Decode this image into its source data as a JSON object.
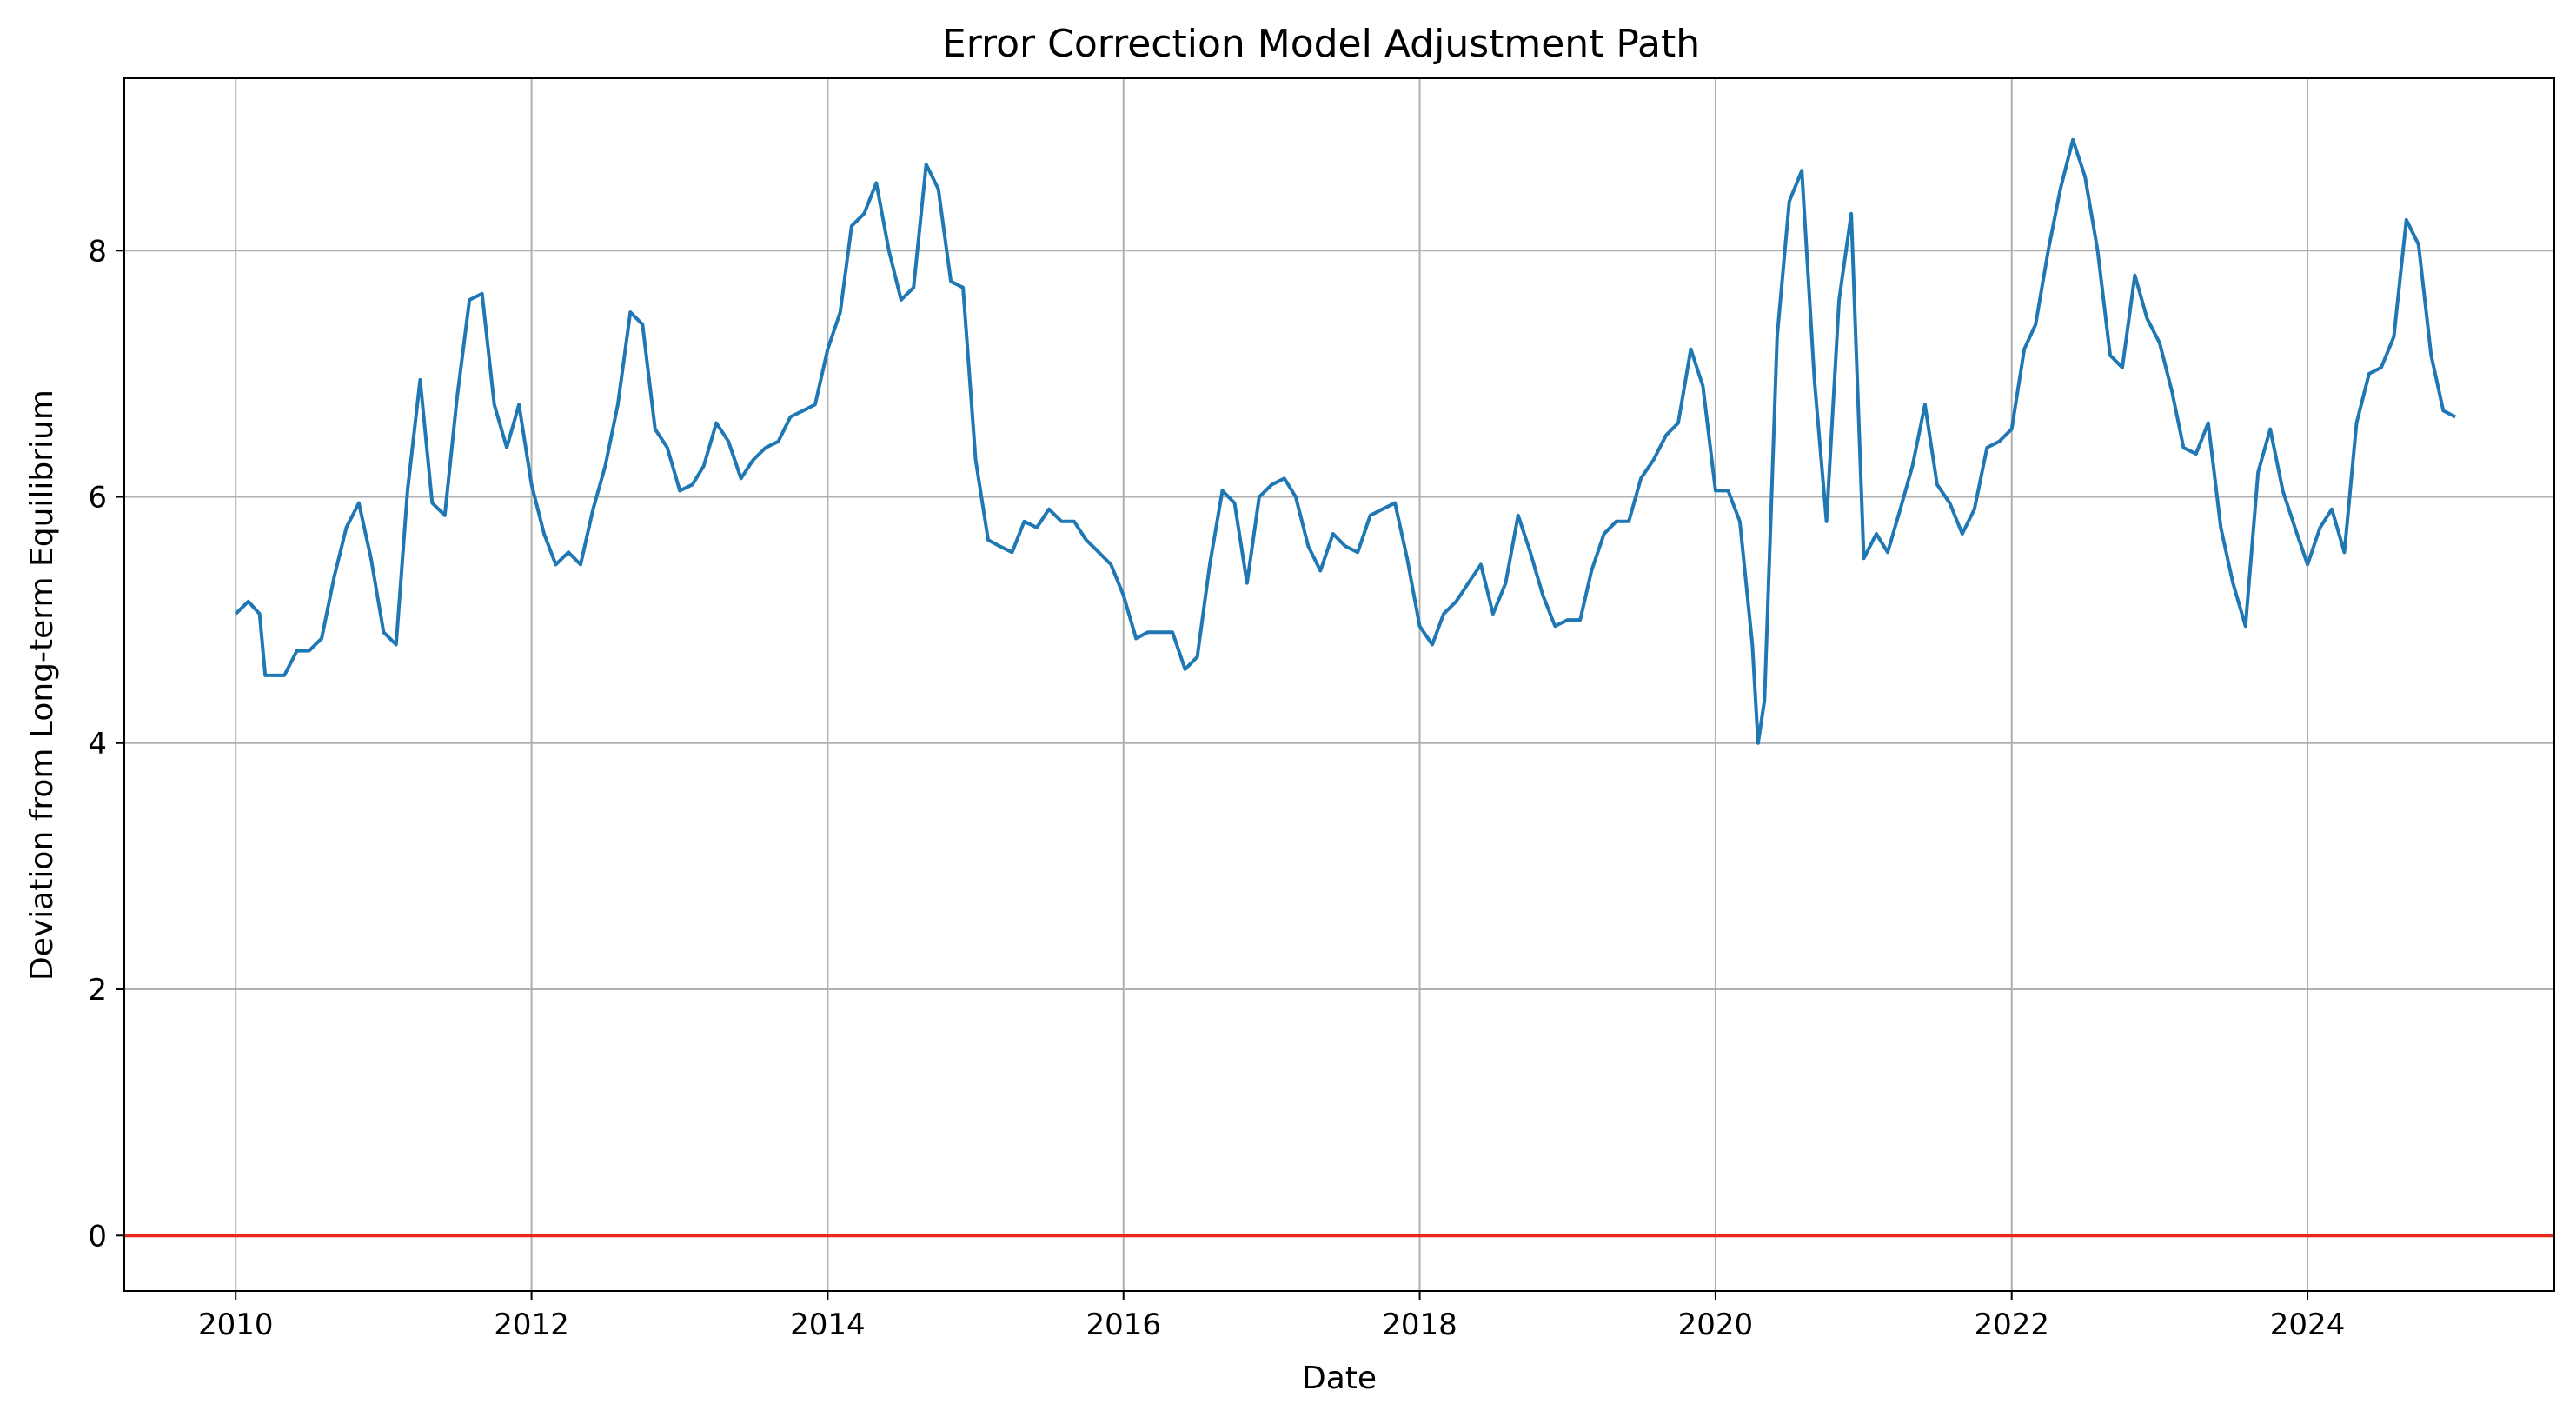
{
  "chart_data": {
    "type": "line",
    "title": "Error Correction Model Adjustment Path",
    "xlabel": "Date",
    "ylabel": "Deviation from Long-term Equilibrium",
    "x_ticks": [
      "2010",
      "2012",
      "2014",
      "2016",
      "2018",
      "2020",
      "2022",
      "2024"
    ],
    "y_ticks": [
      "0",
      "2",
      "4",
      "6",
      "8"
    ],
    "xlim": [
      "2009-04-01",
      "2025-09-01"
    ],
    "ylim": [
      -0.45,
      9.4
    ],
    "grid": true,
    "reference_line": {
      "y": 0,
      "color": "#e8281f"
    },
    "series": [
      {
        "color": "#1f77b4",
        "points": [
          [
            "2010-01-01",
            5.05
          ],
          [
            "2010-02-01",
            5.15
          ],
          [
            "2010-03-01",
            5.05
          ],
          [
            "2010-03-15",
            4.55
          ],
          [
            "2010-05-01",
            4.55
          ],
          [
            "2010-06-01",
            4.75
          ],
          [
            "2010-07-01",
            4.75
          ],
          [
            "2010-08-01",
            4.85
          ],
          [
            "2010-09-01",
            5.35
          ],
          [
            "2010-10-01",
            5.75
          ],
          [
            "2010-11-01",
            5.95
          ],
          [
            "2010-12-01",
            5.5
          ],
          [
            "2011-01-01",
            4.9
          ],
          [
            "2011-02-01",
            4.8
          ],
          [
            "2011-03-01",
            6.05
          ],
          [
            "2011-04-01",
            6.95
          ],
          [
            "2011-05-01",
            5.95
          ],
          [
            "2011-06-01",
            5.85
          ],
          [
            "2011-07-01",
            6.8
          ],
          [
            "2011-08-01",
            7.6
          ],
          [
            "2011-09-01",
            7.65
          ],
          [
            "2011-10-01",
            6.75
          ],
          [
            "2011-11-01",
            6.4
          ],
          [
            "2011-12-01",
            6.75
          ],
          [
            "2012-01-01",
            6.1
          ],
          [
            "2012-02-01",
            5.7
          ],
          [
            "2012-03-01",
            5.45
          ],
          [
            "2012-04-01",
            5.55
          ],
          [
            "2012-05-01",
            5.45
          ],
          [
            "2012-06-01",
            5.9
          ],
          [
            "2012-07-01",
            6.25
          ],
          [
            "2012-08-01",
            6.75
          ],
          [
            "2012-09-01",
            7.5
          ],
          [
            "2012-10-01",
            7.4
          ],
          [
            "2012-11-01",
            6.55
          ],
          [
            "2012-12-01",
            6.4
          ],
          [
            "2013-01-01",
            6.05
          ],
          [
            "2013-02-01",
            6.1
          ],
          [
            "2013-03-01",
            6.25
          ],
          [
            "2013-04-01",
            6.6
          ],
          [
            "2013-05-01",
            6.45
          ],
          [
            "2013-06-01",
            6.15
          ],
          [
            "2013-07-01",
            6.3
          ],
          [
            "2013-08-01",
            6.4
          ],
          [
            "2013-09-01",
            6.45
          ],
          [
            "2013-10-01",
            6.65
          ],
          [
            "2013-11-01",
            6.7
          ],
          [
            "2013-12-01",
            6.75
          ],
          [
            "2014-01-01",
            7.2
          ],
          [
            "2014-02-01",
            7.5
          ],
          [
            "2014-03-01",
            8.2
          ],
          [
            "2014-04-01",
            8.3
          ],
          [
            "2014-05-01",
            8.55
          ],
          [
            "2014-06-01",
            8.0
          ],
          [
            "2014-07-01",
            7.6
          ],
          [
            "2014-08-01",
            7.7
          ],
          [
            "2014-09-01",
            8.7
          ],
          [
            "2014-10-01",
            8.5
          ],
          [
            "2014-11-01",
            7.75
          ],
          [
            "2014-12-01",
            7.7
          ],
          [
            "2015-01-01",
            6.3
          ],
          [
            "2015-02-01",
            5.65
          ],
          [
            "2015-03-01",
            5.6
          ],
          [
            "2015-04-01",
            5.55
          ],
          [
            "2015-05-01",
            5.8
          ],
          [
            "2015-06-01",
            5.75
          ],
          [
            "2015-07-01",
            5.9
          ],
          [
            "2015-08-01",
            5.8
          ],
          [
            "2015-09-01",
            5.8
          ],
          [
            "2015-10-01",
            5.65
          ],
          [
            "2015-11-01",
            5.55
          ],
          [
            "2015-12-01",
            5.45
          ],
          [
            "2016-01-01",
            5.2
          ],
          [
            "2016-02-01",
            4.85
          ],
          [
            "2016-03-01",
            4.9
          ],
          [
            "2016-04-01",
            4.9
          ],
          [
            "2016-05-01",
            4.9
          ],
          [
            "2016-06-01",
            4.6
          ],
          [
            "2016-07-01",
            4.7
          ],
          [
            "2016-08-01",
            5.45
          ],
          [
            "2016-09-01",
            6.05
          ],
          [
            "2016-10-01",
            5.95
          ],
          [
            "2016-11-01",
            5.3
          ],
          [
            "2016-12-01",
            6.0
          ],
          [
            "2017-01-01",
            6.1
          ],
          [
            "2017-02-01",
            6.15
          ],
          [
            "2017-03-01",
            6.0
          ],
          [
            "2017-04-01",
            5.6
          ],
          [
            "2017-05-01",
            5.4
          ],
          [
            "2017-06-01",
            5.7
          ],
          [
            "2017-07-01",
            5.6
          ],
          [
            "2017-08-01",
            5.55
          ],
          [
            "2017-09-01",
            5.85
          ],
          [
            "2017-10-01",
            5.9
          ],
          [
            "2017-11-01",
            5.95
          ],
          [
            "2017-12-01",
            5.5
          ],
          [
            "2018-01-01",
            4.95
          ],
          [
            "2018-02-01",
            4.8
          ],
          [
            "2018-03-01",
            5.05
          ],
          [
            "2018-04-01",
            5.15
          ],
          [
            "2018-05-01",
            5.3
          ],
          [
            "2018-06-01",
            5.45
          ],
          [
            "2018-07-01",
            5.05
          ],
          [
            "2018-08-01",
            5.3
          ],
          [
            "2018-09-01",
            5.85
          ],
          [
            "2018-10-01",
            5.55
          ],
          [
            "2018-11-01",
            5.2
          ],
          [
            "2018-12-01",
            4.95
          ],
          [
            "2019-01-01",
            5.0
          ],
          [
            "2019-02-01",
            5.0
          ],
          [
            "2019-03-01",
            5.4
          ],
          [
            "2019-04-01",
            5.7
          ],
          [
            "2019-05-01",
            5.8
          ],
          [
            "2019-06-01",
            5.8
          ],
          [
            "2019-07-01",
            6.15
          ],
          [
            "2019-08-01",
            6.3
          ],
          [
            "2019-09-01",
            6.5
          ],
          [
            "2019-10-01",
            6.6
          ],
          [
            "2019-11-01",
            7.2
          ],
          [
            "2019-12-01",
            6.9
          ],
          [
            "2020-01-01",
            6.05
          ],
          [
            "2020-02-01",
            6.05
          ],
          [
            "2020-03-01",
            5.8
          ],
          [
            "2020-04-01",
            4.8
          ],
          [
            "2020-04-15",
            4.0
          ],
          [
            "2020-05-01",
            4.35
          ],
          [
            "2020-06-01",
            7.3
          ],
          [
            "2020-07-01",
            8.4
          ],
          [
            "2020-08-01",
            8.65
          ],
          [
            "2020-09-01",
            6.95
          ],
          [
            "2020-10-01",
            5.8
          ],
          [
            "2020-11-01",
            7.6
          ],
          [
            "2020-12-01",
            8.3
          ],
          [
            "2021-01-01",
            5.5
          ],
          [
            "2021-02-01",
            5.7
          ],
          [
            "2021-03-01",
            5.55
          ],
          [
            "2021-04-01",
            5.9
          ],
          [
            "2021-05-01",
            6.25
          ],
          [
            "2021-06-01",
            6.75
          ],
          [
            "2021-07-01",
            6.1
          ],
          [
            "2021-08-01",
            5.95
          ],
          [
            "2021-09-01",
            5.7
          ],
          [
            "2021-10-01",
            5.9
          ],
          [
            "2021-11-01",
            6.4
          ],
          [
            "2021-12-01",
            6.45
          ],
          [
            "2022-01-01",
            6.55
          ],
          [
            "2022-02-01",
            7.2
          ],
          [
            "2022-03-01",
            7.4
          ],
          [
            "2022-04-01",
            8.0
          ],
          [
            "2022-05-01",
            8.5
          ],
          [
            "2022-06-01",
            8.9
          ],
          [
            "2022-07-01",
            8.6
          ],
          [
            "2022-08-01",
            8.0
          ],
          [
            "2022-09-01",
            7.15
          ],
          [
            "2022-10-01",
            7.05
          ],
          [
            "2022-11-01",
            7.8
          ],
          [
            "2022-12-01",
            7.45
          ],
          [
            "2023-01-01",
            7.25
          ],
          [
            "2023-02-01",
            6.85
          ],
          [
            "2023-03-01",
            6.4
          ],
          [
            "2023-04-01",
            6.35
          ],
          [
            "2023-05-01",
            6.6
          ],
          [
            "2023-06-01",
            5.75
          ],
          [
            "2023-07-01",
            5.3
          ],
          [
            "2023-08-01",
            4.95
          ],
          [
            "2023-09-01",
            6.2
          ],
          [
            "2023-10-01",
            6.55
          ],
          [
            "2023-11-01",
            6.05
          ],
          [
            "2023-12-01",
            5.75
          ],
          [
            "2024-01-01",
            5.45
          ],
          [
            "2024-02-01",
            5.75
          ],
          [
            "2024-03-01",
            5.9
          ],
          [
            "2024-04-01",
            5.55
          ],
          [
            "2024-05-01",
            6.6
          ],
          [
            "2024-06-01",
            7.0
          ],
          [
            "2024-07-01",
            7.05
          ],
          [
            "2024-08-01",
            7.3
          ],
          [
            "2024-09-01",
            8.25
          ],
          [
            "2024-10-01",
            8.05
          ],
          [
            "2024-11-01",
            7.15
          ],
          [
            "2024-12-01",
            6.7
          ],
          [
            "2024-12-31",
            6.65
          ]
        ]
      }
    ]
  }
}
